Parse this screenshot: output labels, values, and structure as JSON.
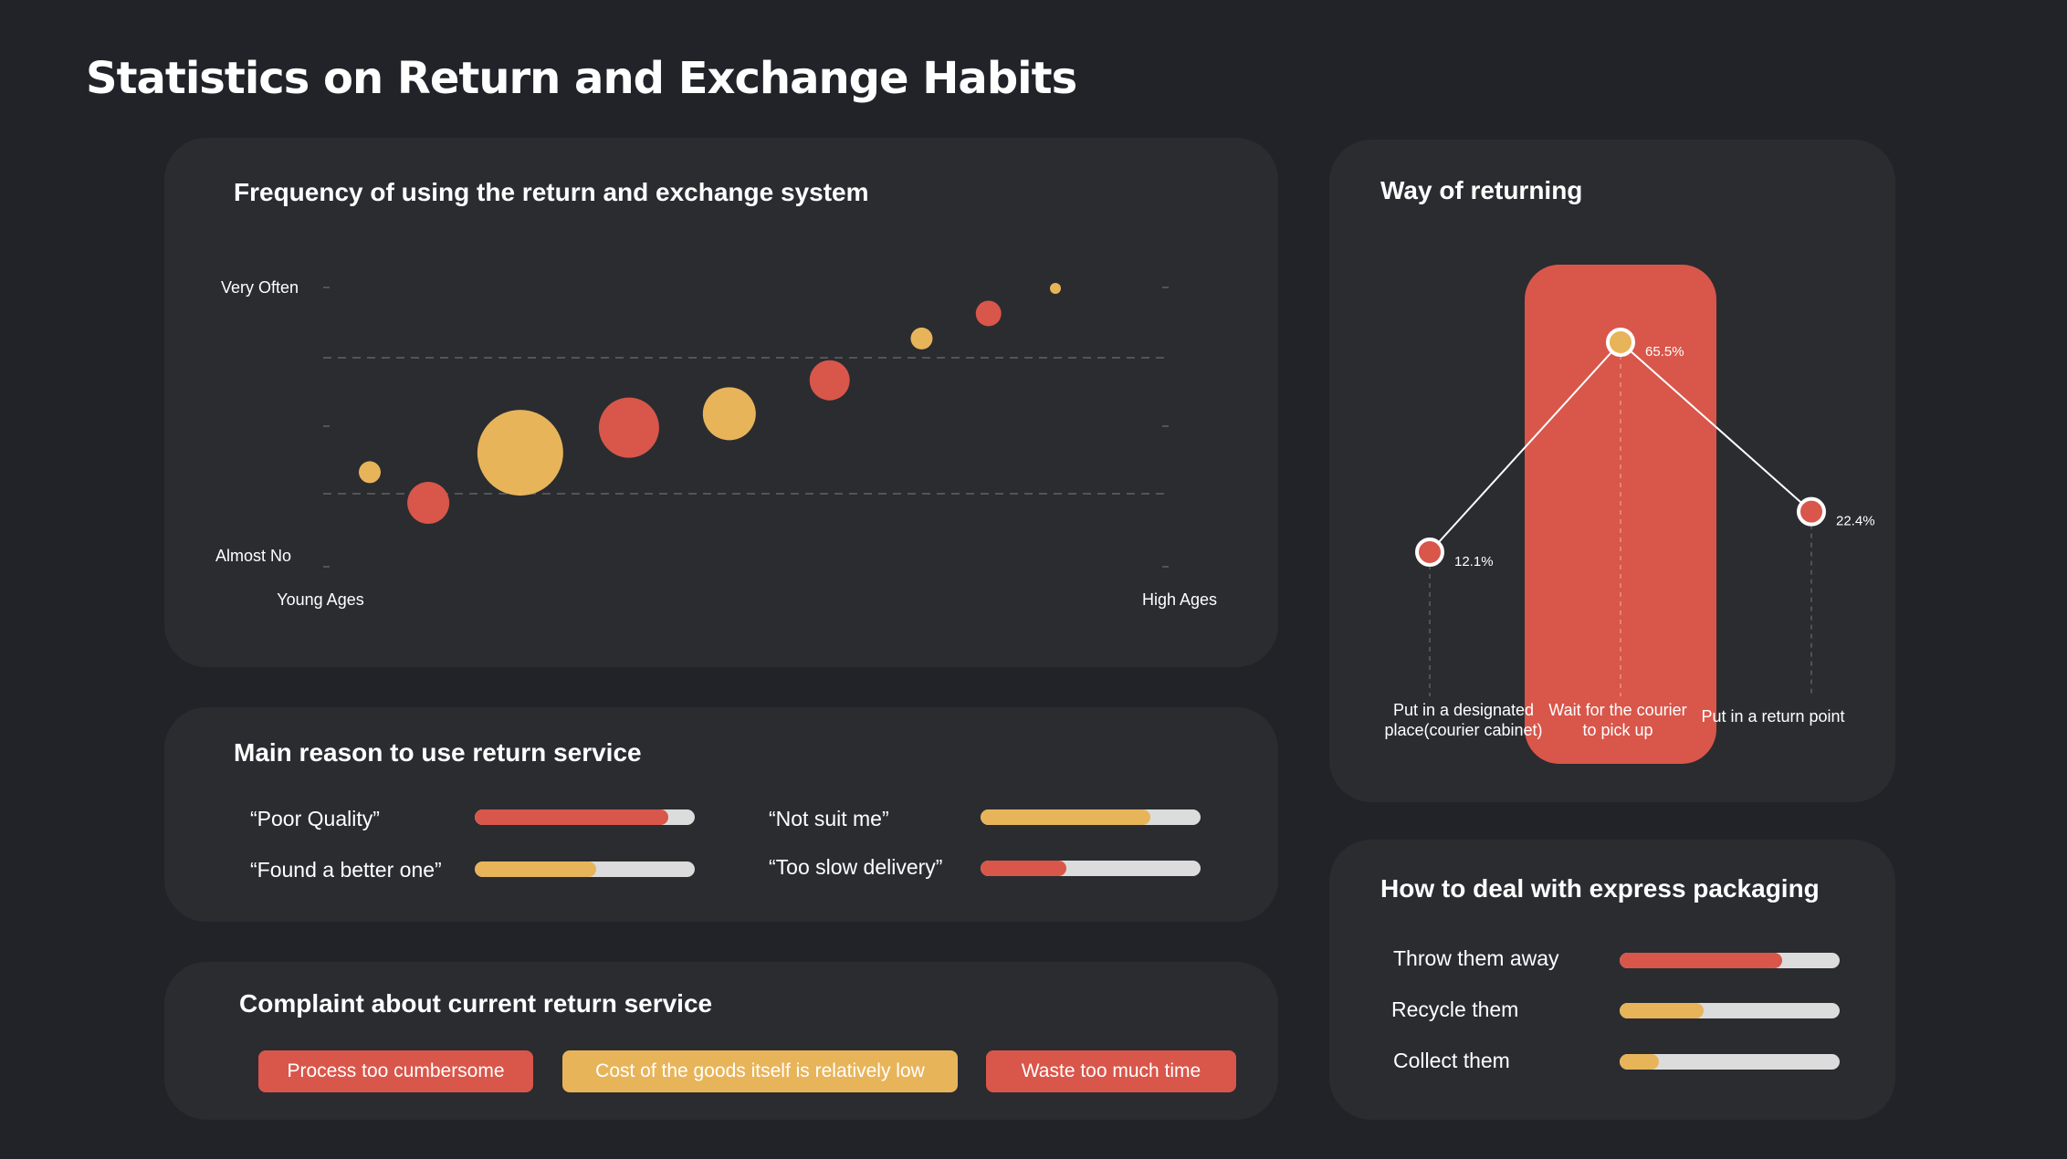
{
  "page": {
    "title": "Statistics on Return and Exchange Habits"
  },
  "colors": {
    "background": "#212329",
    "card": "#2a2c30",
    "red": "#d9564a",
    "yellow": "#e8b45a",
    "track": "#dcdcdc"
  },
  "frequency": {
    "title": "Frequency of using the return and exchange system",
    "chart_data": {
      "type": "scatter",
      "title": "Frequency of using the return and exchange system",
      "ylabel_top": "Very Often",
      "ylabel_bottom": "Almost No",
      "xlabel_left": "Young Ages",
      "xlabel_right": "High Ages",
      "xlim": [
        0,
        1
      ],
      "ylim": [
        0,
        1
      ],
      "grid": "dashed horizontal",
      "points": [
        {
          "x": 0.05,
          "y": 0.34,
          "size": 12,
          "color": "#e8b45a"
        },
        {
          "x": 0.12,
          "y": 0.23,
          "size": 23,
          "color": "#d9564a"
        },
        {
          "x": 0.23,
          "y": 0.41,
          "size": 47,
          "color": "#e8b45a"
        },
        {
          "x": 0.36,
          "y": 0.5,
          "size": 33,
          "color": "#d9564a"
        },
        {
          "x": 0.48,
          "y": 0.55,
          "size": 29,
          "color": "#e8b45a"
        },
        {
          "x": 0.6,
          "y": 0.67,
          "size": 22,
          "color": "#d9564a"
        },
        {
          "x": 0.71,
          "y": 0.82,
          "size": 12,
          "color": "#e8b45a"
        },
        {
          "x": 0.79,
          "y": 0.91,
          "size": 14,
          "color": "#d9564a"
        },
        {
          "x": 0.87,
          "y": 1.0,
          "size": 6,
          "color": "#e8b45a"
        }
      ]
    }
  },
  "reasons": {
    "title": "Main reason to use return service",
    "items": [
      {
        "label": "“Poor Quality”",
        "value": 0.88,
        "color": "#d9564a"
      },
      {
        "label": "“Not suit me”",
        "value": 0.77,
        "color": "#e8b45a"
      },
      {
        "label": "“Found a better one”",
        "value": 0.55,
        "color": "#e8b45a"
      },
      {
        "label": "“Too slow delivery”",
        "value": 0.39,
        "color": "#d9564a"
      }
    ]
  },
  "complaints": {
    "title": "Complaint about current return service",
    "tags": [
      {
        "label": "Process too cumbersome",
        "color": "#d9564a"
      },
      {
        "label": "Cost of the goods itself is relatively low",
        "color": "#e8b45a"
      },
      {
        "label": "Waste too much time",
        "color": "#d9564a"
      }
    ]
  },
  "way": {
    "title": "Way of returning",
    "chart_data": {
      "type": "line",
      "title": "Way of returning",
      "categories": [
        "Put in a designated place(courier cabinet)",
        "Wait for the courier to pick up",
        "Put in a return point"
      ],
      "values": [
        12.1,
        65.5,
        22.4
      ],
      "value_labels": [
        "12.1%",
        "65.5%",
        "22.4%"
      ],
      "highlight_index": 1,
      "ylim": [
        0,
        80
      ]
    },
    "labels": [
      {
        "line1": "Put in a designated",
        "line2": "place(courier cabinet)"
      },
      {
        "line1": "Wait for the courier",
        "line2": "to pick up"
      },
      {
        "line1": "Put in a return point",
        "line2": ""
      }
    ]
  },
  "packaging": {
    "title": "How to deal with express packaging",
    "items": [
      {
        "label": "Throw them away",
        "value": 0.74,
        "color": "#d9564a"
      },
      {
        "label": "Recycle them",
        "value": 0.38,
        "color": "#e8b45a"
      },
      {
        "label": "Collect them",
        "value": 0.18,
        "color": "#e8b45a"
      }
    ]
  }
}
